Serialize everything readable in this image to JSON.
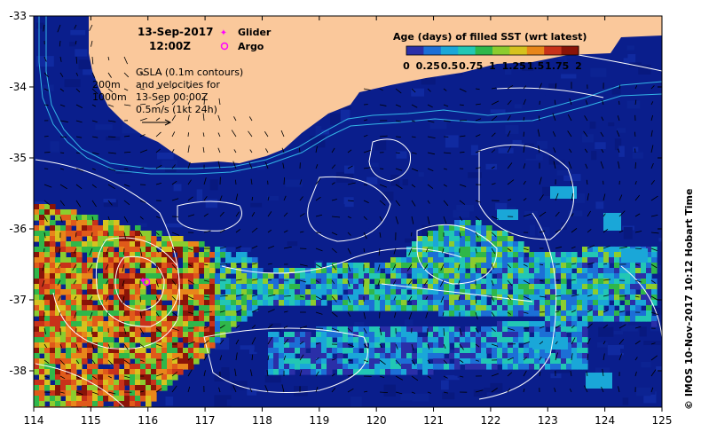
{
  "map": {
    "date": "13-Sep-2017",
    "time": "12:00Z",
    "legend_glider": "Glider",
    "legend_argo": "Argo",
    "gsla_lines": [
      "GSLA (0.1m contours)",
      "and velocities for",
      "13-Sep 00:00Z",
      "0.5m/s (1kt 24h)"
    ],
    "contour_200": "200m",
    "contour_1000": "1000m",
    "colorbar_title": "Age (days) of filled SST (wrt latest)",
    "colorbar_ticks": [
      "0",
      "0.25",
      "0.5",
      "0.75",
      "1",
      "1.25",
      "1.5",
      "1.75",
      "2"
    ],
    "colorbar_colors": [
      "#2a2fa8",
      "#1c6fd6",
      "#1aa7d8",
      "#22c7b4",
      "#2fb74a",
      "#8ccc2e",
      "#d6c21e",
      "#e8861a",
      "#c8321a",
      "#8a1408"
    ],
    "credit": "© IMOS 10-Nov-2017 10:12 Hobart Time",
    "x_ticks": [
      "114",
      "115",
      "116",
      "117",
      "118",
      "119",
      "120",
      "121",
      "122",
      "123",
      "124",
      "125"
    ],
    "y_ticks": [
      "-33",
      "-34",
      "-35",
      "-36",
      "-37",
      "-38"
    ],
    "colors": {
      "ocean": "#0a1e8c",
      "land": "#fac89b",
      "bathymetry": "#34b6e8",
      "glider": "#ff00ff",
      "argo": "#ff00ff"
    }
  }
}
